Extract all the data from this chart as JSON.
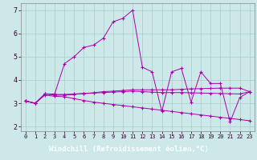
{
  "background_color": "#cce8e8",
  "plot_bg_color": "#cce8e8",
  "xlabel_band_color": "#6600aa",
  "line_color": "#aa00aa",
  "grid_color": "#aacccc",
  "xlim": [
    -0.5,
    23.5
  ],
  "ylim": [
    1.8,
    7.3
  ],
  "xlabel": "Windchill (Refroidissement éolien,°C)",
  "xtick_labels": [
    "0",
    "1",
    "2",
    "3",
    "4",
    "5",
    "6",
    "7",
    "8",
    "9",
    "10",
    "11",
    "12",
    "13",
    "14",
    "15",
    "16",
    "17",
    "18",
    "19",
    "20",
    "21",
    "22",
    "23"
  ],
  "ytick_labels": [
    "2",
    "3",
    "4",
    "5",
    "6",
    "7"
  ],
  "ytick_vals": [
    2,
    3,
    4,
    5,
    6,
    7
  ],
  "series": [
    [
      3.1,
      3.0,
      3.4,
      3.4,
      4.7,
      5.0,
      5.4,
      5.5,
      5.8,
      6.5,
      6.65,
      7.0,
      4.55,
      4.35,
      2.65,
      4.35,
      4.5,
      3.05,
      4.35,
      3.85,
      3.85,
      2.2,
      3.25,
      3.5
    ],
    [
      3.1,
      3.0,
      3.4,
      3.35,
      3.35,
      3.38,
      3.42,
      3.45,
      3.5,
      3.52,
      3.55,
      3.58,
      3.58,
      3.58,
      3.58,
      3.58,
      3.6,
      3.62,
      3.63,
      3.64,
      3.65,
      3.65,
      3.65,
      3.5
    ],
    [
      3.1,
      3.0,
      3.35,
      3.3,
      3.28,
      3.2,
      3.12,
      3.05,
      3.0,
      2.95,
      2.9,
      2.85,
      2.8,
      2.75,
      2.7,
      2.65,
      2.6,
      2.55,
      2.5,
      2.45,
      2.4,
      2.35,
      2.3,
      2.25
    ],
    [
      3.1,
      3.0,
      3.4,
      3.38,
      3.38,
      3.4,
      3.42,
      3.44,
      3.46,
      3.48,
      3.5,
      3.52,
      3.5,
      3.48,
      3.46,
      3.46,
      3.46,
      3.45,
      3.44,
      3.43,
      3.42,
      3.41,
      3.4,
      3.5
    ]
  ]
}
